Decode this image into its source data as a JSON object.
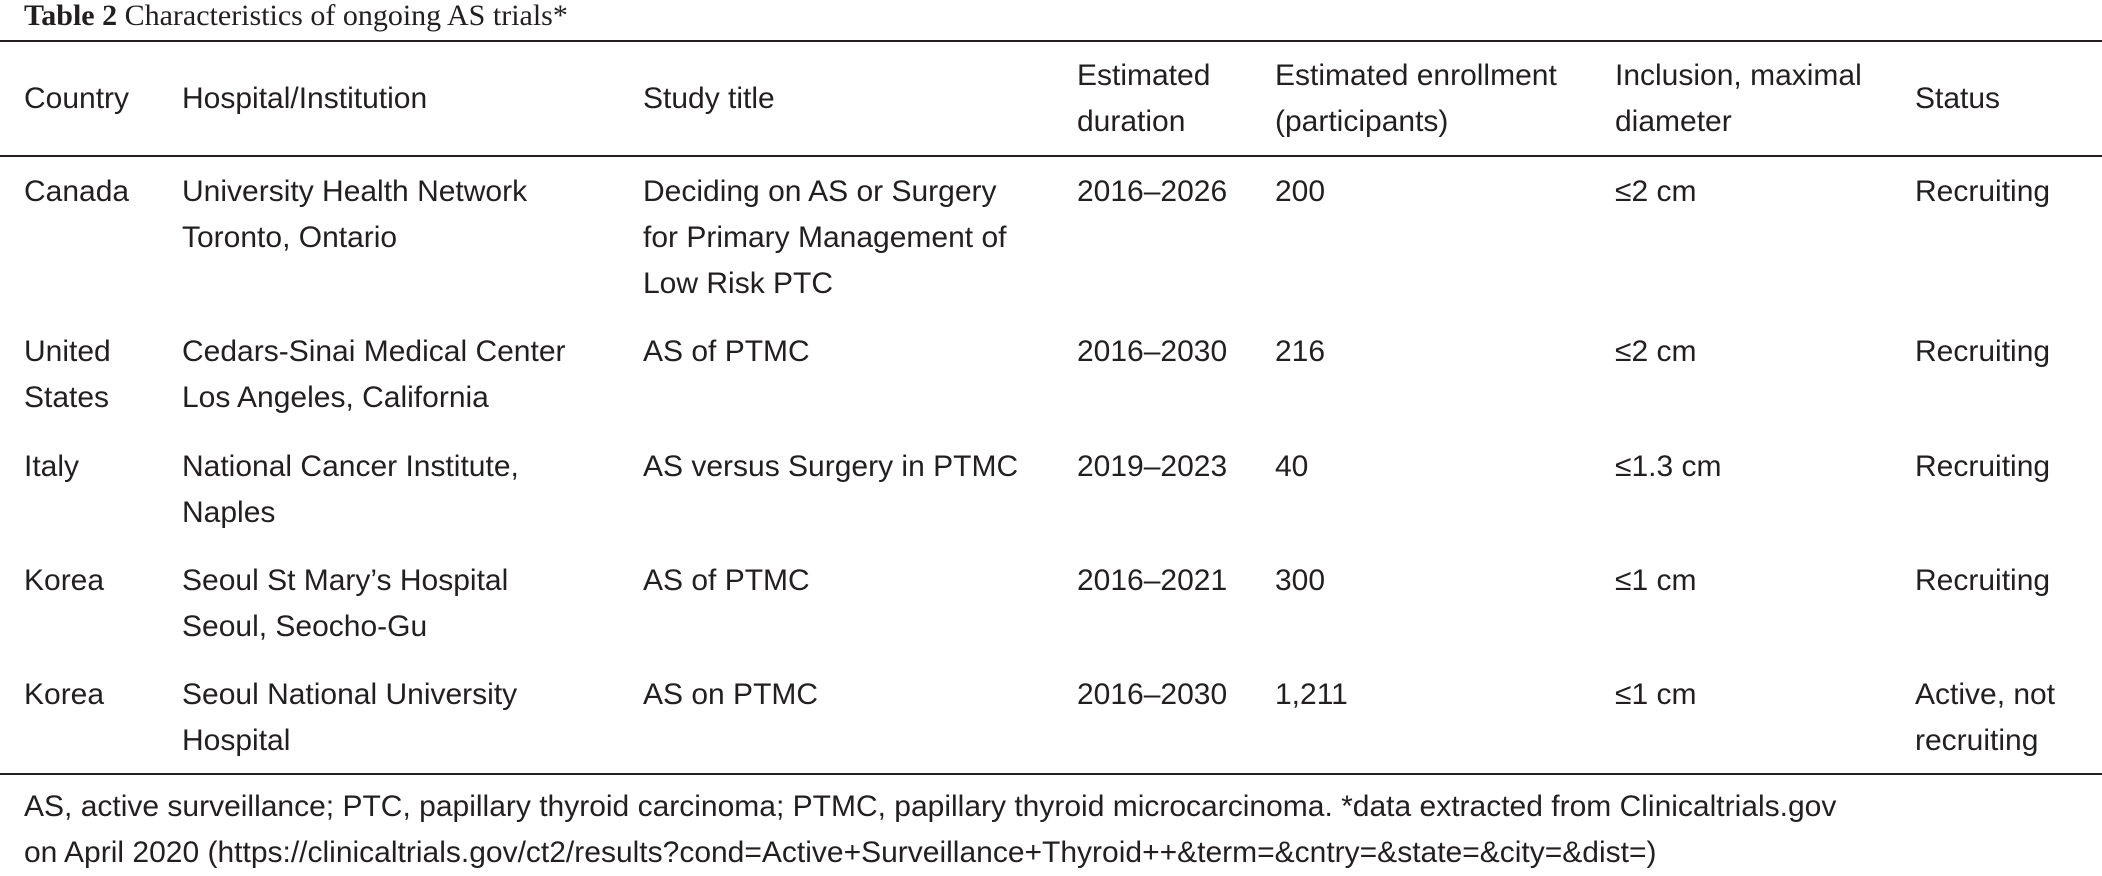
{
  "caption": {
    "label": "Table 2",
    "title": "Characteristics of ongoing AS trials*"
  },
  "table": {
    "headers": [
      [
        "Country"
      ],
      [
        "Hospital/Institution"
      ],
      [
        "Study title"
      ],
      [
        "Estimated",
        "duration"
      ],
      [
        "Estimated enrollment",
        "(participants)"
      ],
      [
        "Inclusion, maximal",
        "diameter"
      ],
      [
        "Status"
      ]
    ],
    "rows": [
      [
        [
          "Canada"
        ],
        [
          "University Health Network",
          "Toronto, Ontario"
        ],
        [
          "Deciding on AS or Surgery",
          "for Primary Management of",
          "Low Risk PTC"
        ],
        [
          "2016–2026"
        ],
        [
          "200"
        ],
        [
          "≤2 cm"
        ],
        [
          "Recruiting"
        ]
      ],
      [
        [
          "United",
          "States"
        ],
        [
          "Cedars-Sinai Medical Center",
          "Los Angeles, California"
        ],
        [
          "AS of PTMC"
        ],
        [
          "2016–2030"
        ],
        [
          "216"
        ],
        [
          "≤2 cm"
        ],
        [
          "Recruiting"
        ]
      ],
      [
        [
          "Italy"
        ],
        [
          "National Cancer Institute,",
          "Naples"
        ],
        [
          "AS versus Surgery in PTMC"
        ],
        [
          "2019–2023"
        ],
        [
          "40"
        ],
        [
          "≤1.3 cm"
        ],
        [
          "Recruiting"
        ]
      ],
      [
        [
          "Korea"
        ],
        [
          "Seoul St Mary’s Hospital",
          "Seoul, Seocho-Gu"
        ],
        [
          "AS of PTMC"
        ],
        [
          "2016–2021"
        ],
        [
          "300"
        ],
        [
          "≤1 cm"
        ],
        [
          "Recruiting"
        ]
      ],
      [
        [
          "Korea"
        ],
        [
          "Seoul National University",
          "Hospital"
        ],
        [
          "AS on PTMC"
        ],
        [
          "2016–2030"
        ],
        [
          "1,211"
        ],
        [
          "≤1 cm"
        ],
        [
          "Active, not",
          "recruiting"
        ]
      ]
    ]
  },
  "footnote": [
    "AS, active surveillance; PTC, papillary thyroid carcinoma; PTMC, papillary thyroid microcarcinoma. *data extracted from Clinicaltrials.gov",
    "on April 2020 (https://clinicaltrials.gov/ct2/results?cond=Active+Surveillance+Thyroid++&term=&cntry=&state=&city=&dist=)"
  ]
}
